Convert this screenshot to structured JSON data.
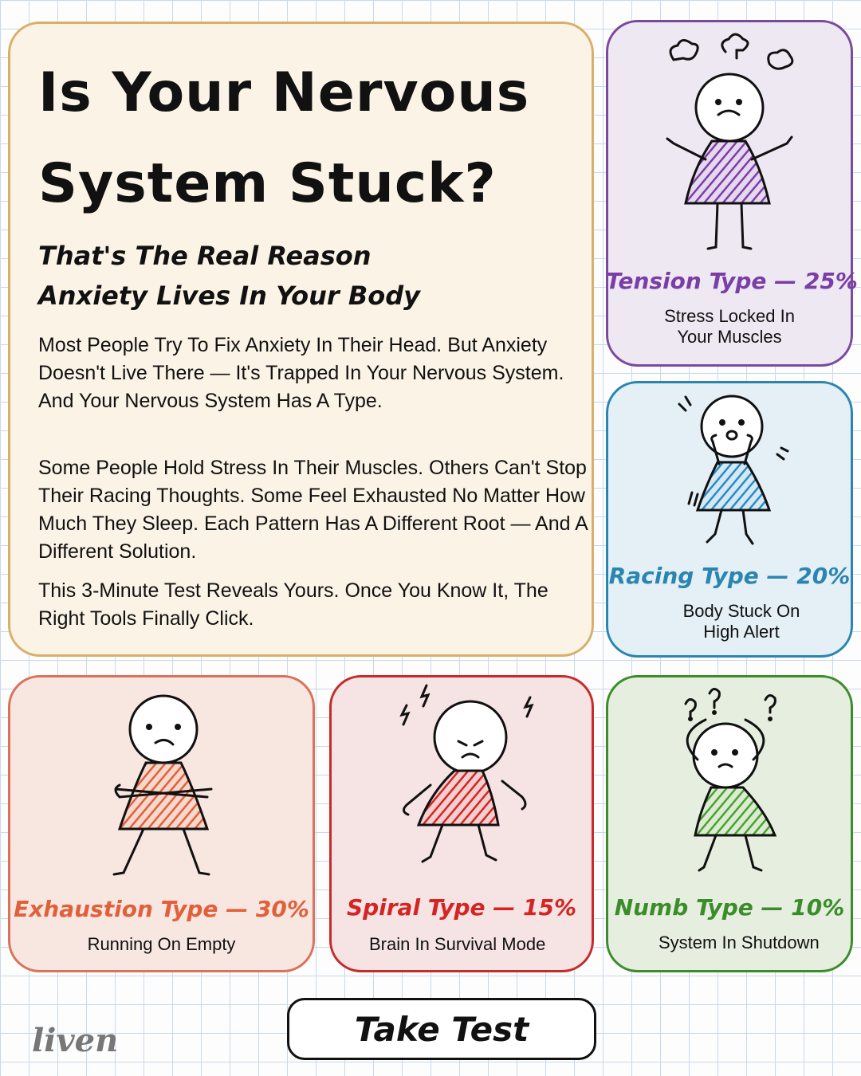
{
  "header": {
    "title": "Is Your Nervous System Stuck?",
    "subtitle": "That's The Real Reason Anxiety Lives In Your Body"
  },
  "body": {
    "paragraphs": [
      "Most People Try To Fix Anxiety In Their Head. But Anxiety Doesn't Live There — It's Trapped In Your Nervous System. And Your Nervous System Has A Type.",
      "Some People Hold Stress In Their Muscles. Others Can't Stop Their Racing Thoughts. Some Feel Exhausted No Matter How Much They Sleep. Each Pattern Has A Different Root — And A Different Solution.",
      "This 3-Minute Test Reveals Yours. Once You Know It, The Right Tools Finally Click."
    ]
  },
  "types": [
    {
      "name": "Tension Type — 25%",
      "description": "Stress Locked In Your Muscles"
    },
    {
      "name": "Racing Type — 20%",
      "description": "Body Stuck On High Alert"
    },
    {
      "name": "Exhaustion Type — 30%",
      "description": "Running On Empty"
    },
    {
      "name": "Spiral Type — 15%",
      "description": "Brain In Survival Mode"
    },
    {
      "name": "Numb Type — 10%",
      "description": "System In Shutdown"
    }
  ],
  "button": {
    "label": "Take Test"
  },
  "brand": "liven"
}
